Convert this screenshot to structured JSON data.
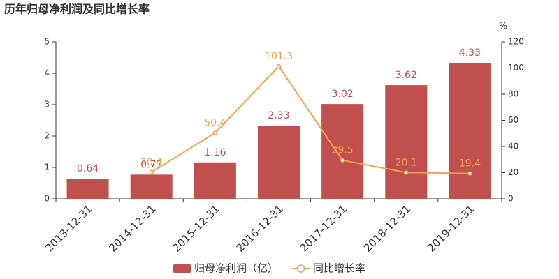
{
  "chart_data": {
    "type": "bar",
    "title": "历年归母净利润及同比增长率",
    "categories": [
      "2013-12-31",
      "2014-12-31",
      "2015-12-31",
      "2016-12-31",
      "2017-12-31",
      "2018-12-31",
      "2019-12-31"
    ],
    "series": [
      {
        "name": "归母净利润（亿）",
        "type": "bar",
        "color": "#c0504d",
        "values": [
          0.64,
          0.77,
          1.16,
          2.33,
          3.02,
          3.62,
          4.33
        ]
      },
      {
        "name": "同比增长率",
        "type": "line",
        "axis": "y2",
        "color": "#f4a14e",
        "values": [
          null,
          20.4,
          50.4,
          101.3,
          29.5,
          20.1,
          19.4
        ]
      }
    ],
    "ylim": [
      0,
      5
    ],
    "yticks": [
      0,
      1,
      2,
      3,
      4,
      5
    ],
    "y2lim": [
      0,
      120
    ],
    "y2ticks": [
      0,
      20,
      40,
      60,
      80,
      100,
      120
    ],
    "y2label": "%",
    "grid": false
  }
}
